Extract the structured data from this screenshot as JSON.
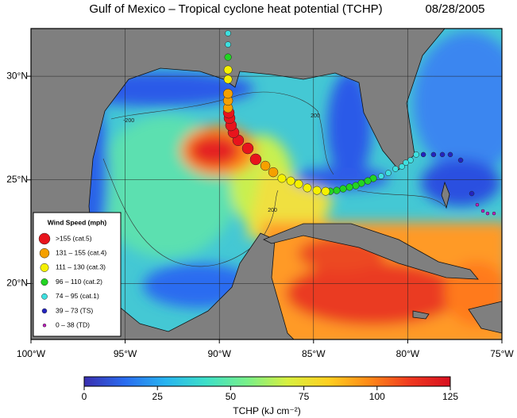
{
  "title": "Gulf of Mexico – Tropical cyclone heat potential (TCHP)",
  "date": "08/28/2005",
  "map": {
    "lon_range": [
      -100,
      -75
    ],
    "lat_range": [
      17.3,
      32.3
    ],
    "lon_ticks": [
      {
        "value": -100,
        "label": "100°W"
      },
      {
        "value": -95,
        "label": "95°W"
      },
      {
        "value": -90,
        "label": "90°W"
      },
      {
        "value": -85,
        "label": "85°W"
      },
      {
        "value": -80,
        "label": "80°W"
      },
      {
        "value": -75,
        "label": "75°W"
      }
    ],
    "lat_ticks": [
      {
        "value": 20,
        "label": "20°N"
      },
      {
        "value": 25,
        "label": "25°N"
      },
      {
        "value": 30,
        "label": "30°N"
      }
    ],
    "grid": true,
    "contour_labels": [
      {
        "text": "-200",
        "lon": -94.81,
        "lat": 27.86
      },
      {
        "text": "200",
        "lon": -84.91,
        "lat": 28.09
      },
      {
        "text": "200",
        "lon": -87.18,
        "lat": 23.54
      }
    ]
  },
  "legend": {
    "title": "Wind Speed (mph)",
    "items": [
      {
        "label": ">155 (cat.5)",
        "color": "#e8141c"
      },
      {
        "label": "131 – 155 (cat.4)",
        "color": "#f5a000"
      },
      {
        "label": "111 – 130 (cat.3)",
        "color": "#f5f000"
      },
      {
        "label": "96 – 110 (cat.2)",
        "color": "#22d422"
      },
      {
        "label": "74 – 95 (cat.1)",
        "color": "#3ee0e0"
      },
      {
        "label": "39 – 73 (TS)",
        "color": "#2424c0"
      },
      {
        "label": "0 – 38 (TD)",
        "color": "#c020c0"
      }
    ]
  },
  "track": {
    "lon": [
      -75.42,
      -75.76,
      -76.01,
      -76.31,
      -76.6,
      -77.19,
      -77.74,
      -78.16,
      -78.63,
      -79.17,
      -79.55,
      -79.85,
      -80.1,
      -80.31,
      -80.65,
      -81.03,
      -81.41,
      -81.83,
      -82.12,
      -82.46,
      -82.76,
      -83.09,
      -83.43,
      -83.77,
      -84.11,
      -84.36,
      -84.82,
      -85.33,
      -85.79,
      -86.21,
      -86.68,
      -87.14,
      -87.56,
      -88.07,
      -88.49,
      -89.0,
      -89.25,
      -89.38,
      -89.46,
      -89.5,
      -89.54,
      -89.54,
      -89.54,
      -89.54,
      -89.54,
      -89.54,
      -89.54,
      -89.54
    ],
    "lat": [
      23.38,
      23.38,
      23.5,
      23.8,
      24.34,
      25.95,
      26.22,
      26.22,
      26.22,
      26.22,
      26.22,
      25.95,
      25.83,
      25.64,
      25.53,
      25.33,
      25.18,
      25.07,
      24.95,
      24.84,
      24.72,
      24.65,
      24.57,
      24.49,
      24.45,
      24.45,
      24.49,
      24.61,
      24.8,
      24.95,
      25.07,
      25.37,
      25.68,
      25.99,
      26.52,
      26.91,
      27.29,
      27.63,
      27.98,
      28.24,
      28.47,
      28.82,
      29.16,
      29.85,
      30.31,
      30.92,
      31.53,
      32.07
    ],
    "wind_class": [
      6,
      6,
      6,
      6,
      5,
      5,
      5,
      5,
      5,
      5,
      4,
      4,
      4,
      4,
      4,
      4,
      4,
      3,
      3,
      3,
      3,
      3,
      3,
      3,
      3,
      2,
      2,
      2,
      2,
      2,
      2,
      1,
      1,
      0,
      0,
      0,
      0,
      0,
      0,
      0,
      1,
      1,
      1,
      2,
      2,
      3,
      4,
      4
    ]
  },
  "colorbar": {
    "range": [
      0,
      125
    ],
    "ticks": [
      0,
      25,
      50,
      75,
      100,
      125
    ],
    "label": "TCHP (kJ cm⁻²)",
    "colormap": [
      "#3a2fb0",
      "#2a6cf0",
      "#28b4f0",
      "#3ee0c8",
      "#78f08a",
      "#d8f040",
      "#ffd020",
      "#ff8a18",
      "#f03a20",
      "#d81020"
    ]
  }
}
